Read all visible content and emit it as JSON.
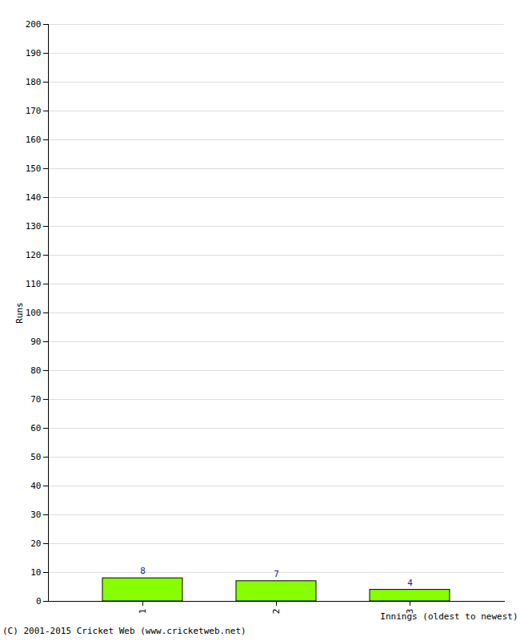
{
  "chart_data": {
    "type": "bar",
    "categories": [
      "1",
      "2",
      "3"
    ],
    "values": [
      8,
      7,
      4
    ],
    "color": "#88ff00",
    "x_label": "Innings (oldest to newest)",
    "y_label": "Runs",
    "caption": "(C) 2001-2015 Cricket Web (www.cricketweb.net)",
    "ylim": [
      0,
      200
    ],
    "yticks": [
      0,
      10,
      20,
      30,
      40,
      50,
      60,
      70,
      80,
      90,
      100,
      110,
      120,
      130,
      140,
      150,
      160,
      170,
      180,
      190,
      200
    ],
    "grid": true,
    "data_labels": true
  }
}
